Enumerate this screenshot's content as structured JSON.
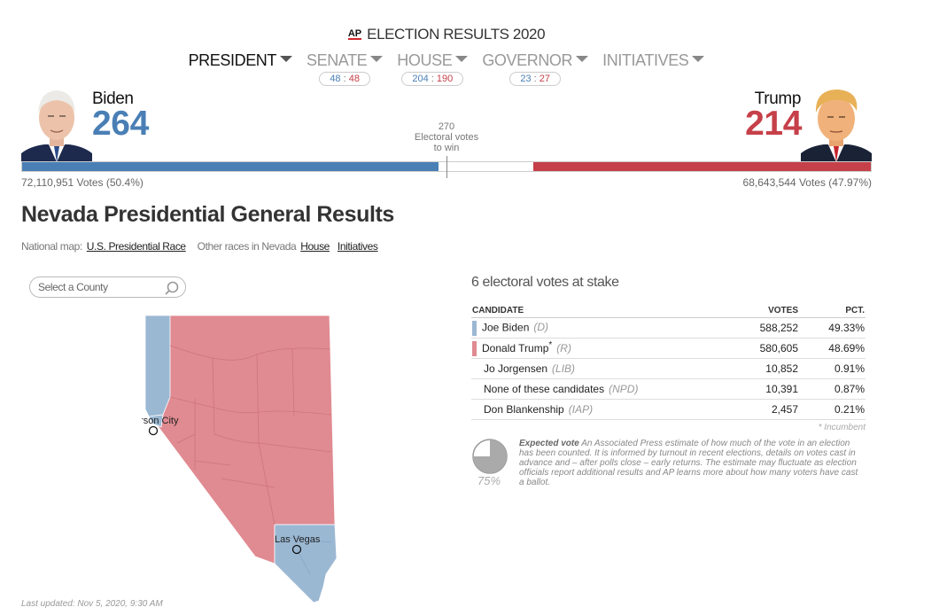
{
  "header": {
    "logo_text": "AP",
    "title": "ELECTION RESULTS 2020"
  },
  "race_nav": [
    {
      "label": "PRESIDENT",
      "active": true
    },
    {
      "label": "SENATE",
      "dem": "48",
      "sep": " : ",
      "rep": "48"
    },
    {
      "label": "HOUSE",
      "dem": "204",
      "sep": " : ",
      "rep": "190"
    },
    {
      "label": "GOVERNOR",
      "dem": "23",
      "sep": " : ",
      "rep": "27"
    },
    {
      "label": "INITIATIVES"
    }
  ],
  "biden": {
    "name": "Biden",
    "electoral_votes": "264",
    "popular_votes": "72,110,951 Votes (50.4%)",
    "color": "#4a7fb5"
  },
  "trump": {
    "name": "Trump",
    "electoral_votes": "214",
    "popular_votes": "68,643,544 Votes (47.97%)",
    "color": "#c64049"
  },
  "to_win": {
    "number": "270",
    "line1": "Electoral votes",
    "line2": "to win"
  },
  "electoral_bar": {
    "total": 538,
    "dem": 264,
    "rep": 214
  },
  "page_title": "Nevada Presidential General Results",
  "subnav": {
    "national_label": "National map:",
    "national_link": "U.S. Presidential Race",
    "other_label": "Other races in Nevada",
    "links": [
      "House",
      "Initiatives"
    ]
  },
  "county_select": {
    "placeholder": "Select a County"
  },
  "map": {
    "cities": [
      "Carson City",
      "Las Vegas"
    ],
    "dem_color": "#9bb8d3",
    "rep_color": "#e08a91"
  },
  "stake": "6 electoral votes at stake",
  "results": {
    "headers": {
      "candidate": "CANDIDATE",
      "votes": "VOTES",
      "pct": "PCT."
    },
    "rows": [
      {
        "name": "Joe Biden",
        "party": "(D)",
        "votes": "588,252",
        "pct": "49.33%",
        "swatch": "#9bb8d3"
      },
      {
        "name": "Donald Trump",
        "incumbent_mark": "*",
        "party": "(R)",
        "votes": "580,605",
        "pct": "48.69%",
        "swatch": "#e08a91"
      },
      {
        "name": "Jo Jorgensen",
        "party": "(LIB)",
        "votes": "10,852",
        "pct": "0.91%"
      },
      {
        "name": "None of these candidates",
        "party": "(NPD)",
        "votes": "10,391",
        "pct": "0.87%"
      },
      {
        "name": "Don Blankenship",
        "party": "(IAP)",
        "votes": "2,457",
        "pct": "0.21%"
      }
    ],
    "incumbent_note": "* Incumbent"
  },
  "expected_vote": {
    "pct": "75%",
    "fraction": 0.75,
    "title": "Expected vote",
    "text": "An Associated Press estimate of how much of the vote in an election has been counted. It is informed by turnout in recent elections, details on votes cast in advance and – after polls close – early returns. The estimate may fluctuate as election officials report additional results and AP learns more about how many voters have cast a ballot."
  },
  "last_updated": "Last updated: Nov 5, 2020, 9:30 AM"
}
